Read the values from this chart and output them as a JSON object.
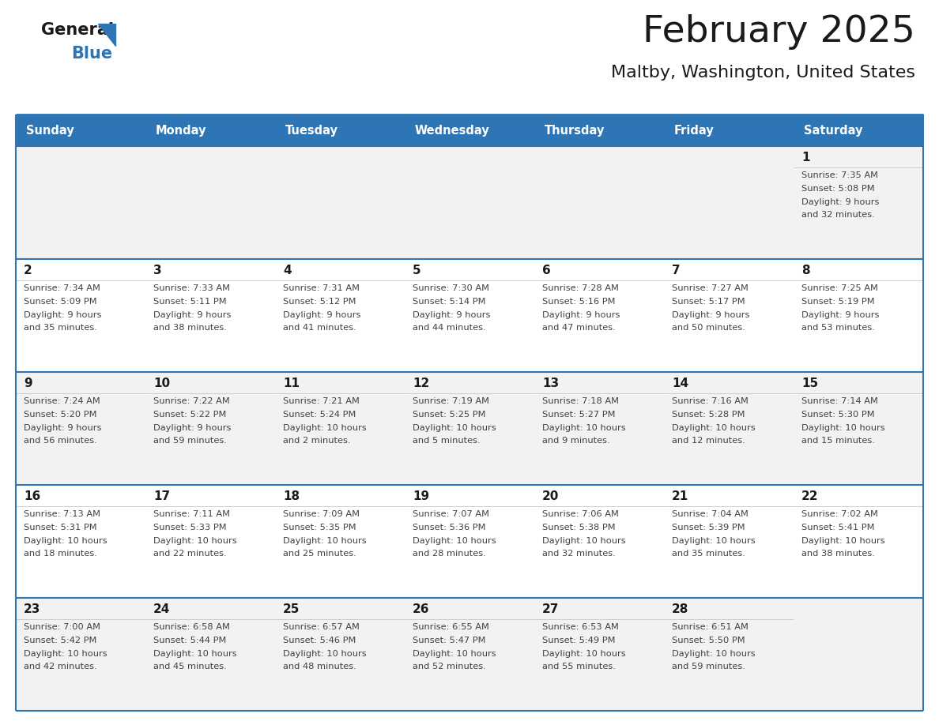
{
  "title": "February 2025",
  "subtitle": "Maltby, Washington, United States",
  "header_color": "#2e75b6",
  "header_text_color": "#ffffff",
  "title_color": "#1a1a1a",
  "subtitle_color": "#1a1a1a",
  "day_headers": [
    "Sunday",
    "Monday",
    "Tuesday",
    "Wednesday",
    "Thursday",
    "Friday",
    "Saturday"
  ],
  "cell_bg_row0": "#f2f2f2",
  "cell_bg_row1": "#ffffff",
  "cell_bg_row2": "#f2f2f2",
  "cell_bg_row3": "#ffffff",
  "cell_bg_row4": "#f2f2f2",
  "separator_color": "#2e75b6",
  "text_color": "#404040",
  "date_color": "#1a1a1a",
  "logo_general_color": "#1a1a1a",
  "logo_blue_color": "#2e75b6",
  "logo_triangle_color": "#2e75b6",
  "calendar_data": [
    [
      {
        "day": null,
        "sunrise": null,
        "sunset": null,
        "daylight_line1": null,
        "daylight_line2": null
      },
      {
        "day": null,
        "sunrise": null,
        "sunset": null,
        "daylight_line1": null,
        "daylight_line2": null
      },
      {
        "day": null,
        "sunrise": null,
        "sunset": null,
        "daylight_line1": null,
        "daylight_line2": null
      },
      {
        "day": null,
        "sunrise": null,
        "sunset": null,
        "daylight_line1": null,
        "daylight_line2": null
      },
      {
        "day": null,
        "sunrise": null,
        "sunset": null,
        "daylight_line1": null,
        "daylight_line2": null
      },
      {
        "day": null,
        "sunrise": null,
        "sunset": null,
        "daylight_line1": null,
        "daylight_line2": null
      },
      {
        "day": "1",
        "sunrise": "Sunrise: 7:35 AM",
        "sunset": "Sunset: 5:08 PM",
        "daylight_line1": "Daylight: 9 hours",
        "daylight_line2": "and 32 minutes."
      }
    ],
    [
      {
        "day": "2",
        "sunrise": "Sunrise: 7:34 AM",
        "sunset": "Sunset: 5:09 PM",
        "daylight_line1": "Daylight: 9 hours",
        "daylight_line2": "and 35 minutes."
      },
      {
        "day": "3",
        "sunrise": "Sunrise: 7:33 AM",
        "sunset": "Sunset: 5:11 PM",
        "daylight_line1": "Daylight: 9 hours",
        "daylight_line2": "and 38 minutes."
      },
      {
        "day": "4",
        "sunrise": "Sunrise: 7:31 AM",
        "sunset": "Sunset: 5:12 PM",
        "daylight_line1": "Daylight: 9 hours",
        "daylight_line2": "and 41 minutes."
      },
      {
        "day": "5",
        "sunrise": "Sunrise: 7:30 AM",
        "sunset": "Sunset: 5:14 PM",
        "daylight_line1": "Daylight: 9 hours",
        "daylight_line2": "and 44 minutes."
      },
      {
        "day": "6",
        "sunrise": "Sunrise: 7:28 AM",
        "sunset": "Sunset: 5:16 PM",
        "daylight_line1": "Daylight: 9 hours",
        "daylight_line2": "and 47 minutes."
      },
      {
        "day": "7",
        "sunrise": "Sunrise: 7:27 AM",
        "sunset": "Sunset: 5:17 PM",
        "daylight_line1": "Daylight: 9 hours",
        "daylight_line2": "and 50 minutes."
      },
      {
        "day": "8",
        "sunrise": "Sunrise: 7:25 AM",
        "sunset": "Sunset: 5:19 PM",
        "daylight_line1": "Daylight: 9 hours",
        "daylight_line2": "and 53 minutes."
      }
    ],
    [
      {
        "day": "9",
        "sunrise": "Sunrise: 7:24 AM",
        "sunset": "Sunset: 5:20 PM",
        "daylight_line1": "Daylight: 9 hours",
        "daylight_line2": "and 56 minutes."
      },
      {
        "day": "10",
        "sunrise": "Sunrise: 7:22 AM",
        "sunset": "Sunset: 5:22 PM",
        "daylight_line1": "Daylight: 9 hours",
        "daylight_line2": "and 59 minutes."
      },
      {
        "day": "11",
        "sunrise": "Sunrise: 7:21 AM",
        "sunset": "Sunset: 5:24 PM",
        "daylight_line1": "Daylight: 10 hours",
        "daylight_line2": "and 2 minutes."
      },
      {
        "day": "12",
        "sunrise": "Sunrise: 7:19 AM",
        "sunset": "Sunset: 5:25 PM",
        "daylight_line1": "Daylight: 10 hours",
        "daylight_line2": "and 5 minutes."
      },
      {
        "day": "13",
        "sunrise": "Sunrise: 7:18 AM",
        "sunset": "Sunset: 5:27 PM",
        "daylight_line1": "Daylight: 10 hours",
        "daylight_line2": "and 9 minutes."
      },
      {
        "day": "14",
        "sunrise": "Sunrise: 7:16 AM",
        "sunset": "Sunset: 5:28 PM",
        "daylight_line1": "Daylight: 10 hours",
        "daylight_line2": "and 12 minutes."
      },
      {
        "day": "15",
        "sunrise": "Sunrise: 7:14 AM",
        "sunset": "Sunset: 5:30 PM",
        "daylight_line1": "Daylight: 10 hours",
        "daylight_line2": "and 15 minutes."
      }
    ],
    [
      {
        "day": "16",
        "sunrise": "Sunrise: 7:13 AM",
        "sunset": "Sunset: 5:31 PM",
        "daylight_line1": "Daylight: 10 hours",
        "daylight_line2": "and 18 minutes."
      },
      {
        "day": "17",
        "sunrise": "Sunrise: 7:11 AM",
        "sunset": "Sunset: 5:33 PM",
        "daylight_line1": "Daylight: 10 hours",
        "daylight_line2": "and 22 minutes."
      },
      {
        "day": "18",
        "sunrise": "Sunrise: 7:09 AM",
        "sunset": "Sunset: 5:35 PM",
        "daylight_line1": "Daylight: 10 hours",
        "daylight_line2": "and 25 minutes."
      },
      {
        "day": "19",
        "sunrise": "Sunrise: 7:07 AM",
        "sunset": "Sunset: 5:36 PM",
        "daylight_line1": "Daylight: 10 hours",
        "daylight_line2": "and 28 minutes."
      },
      {
        "day": "20",
        "sunrise": "Sunrise: 7:06 AM",
        "sunset": "Sunset: 5:38 PM",
        "daylight_line1": "Daylight: 10 hours",
        "daylight_line2": "and 32 minutes."
      },
      {
        "day": "21",
        "sunrise": "Sunrise: 7:04 AM",
        "sunset": "Sunset: 5:39 PM",
        "daylight_line1": "Daylight: 10 hours",
        "daylight_line2": "and 35 minutes."
      },
      {
        "day": "22",
        "sunrise": "Sunrise: 7:02 AM",
        "sunset": "Sunset: 5:41 PM",
        "daylight_line1": "Daylight: 10 hours",
        "daylight_line2": "and 38 minutes."
      }
    ],
    [
      {
        "day": "23",
        "sunrise": "Sunrise: 7:00 AM",
        "sunset": "Sunset: 5:42 PM",
        "daylight_line1": "Daylight: 10 hours",
        "daylight_line2": "and 42 minutes."
      },
      {
        "day": "24",
        "sunrise": "Sunrise: 6:58 AM",
        "sunset": "Sunset: 5:44 PM",
        "daylight_line1": "Daylight: 10 hours",
        "daylight_line2": "and 45 minutes."
      },
      {
        "day": "25",
        "sunrise": "Sunrise: 6:57 AM",
        "sunset": "Sunset: 5:46 PM",
        "daylight_line1": "Daylight: 10 hours",
        "daylight_line2": "and 48 minutes."
      },
      {
        "day": "26",
        "sunrise": "Sunrise: 6:55 AM",
        "sunset": "Sunset: 5:47 PM",
        "daylight_line1": "Daylight: 10 hours",
        "daylight_line2": "and 52 minutes."
      },
      {
        "day": "27",
        "sunrise": "Sunrise: 6:53 AM",
        "sunset": "Sunset: 5:49 PM",
        "daylight_line1": "Daylight: 10 hours",
        "daylight_line2": "and 55 minutes."
      },
      {
        "day": "28",
        "sunrise": "Sunrise: 6:51 AM",
        "sunset": "Sunset: 5:50 PM",
        "daylight_line1": "Daylight: 10 hours",
        "daylight_line2": "and 59 minutes."
      },
      {
        "day": null,
        "sunrise": null,
        "sunset": null,
        "daylight_line1": null,
        "daylight_line2": null
      }
    ]
  ],
  "row_bg_colors": [
    "#f2f2f2",
    "#ffffff",
    "#f2f2f2",
    "#ffffff",
    "#f2f2f2"
  ]
}
